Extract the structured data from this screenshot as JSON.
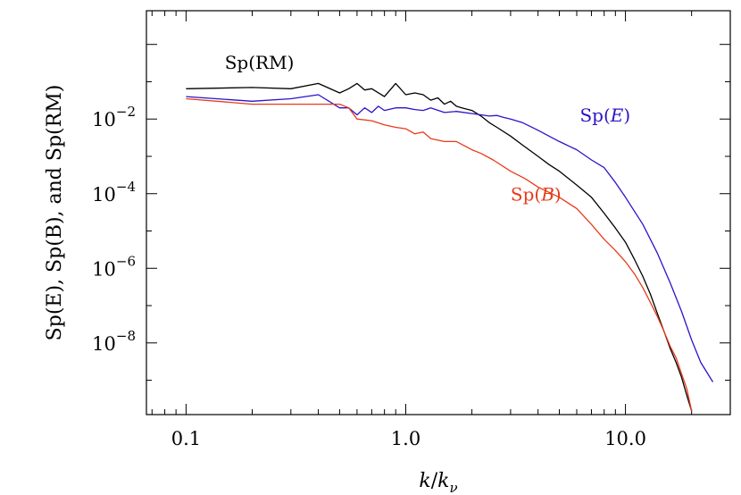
{
  "chart_data": {
    "type": "line",
    "xscale": "log",
    "yscale": "log",
    "xlim": [
      0.066,
      30
    ],
    "ylim": [
      1.2e-10,
      8e-08,
      0.0
    ],
    "ylim_data": [
      1.2e-10,
      8
    ],
    "xlabel": "k/k_ν",
    "xlabel_parts": {
      "k": "k",
      "slash": "/",
      "sub_base": "k",
      "sub": "ν"
    },
    "ylabel": "Sp(E), Sp(B), and Sp(RM)",
    "xticks": [
      {
        "value": 0.1,
        "label": "0.1"
      },
      {
        "value": 1.0,
        "label": "1.0"
      },
      {
        "value": 10.0,
        "label": "10.0"
      }
    ],
    "yticks": [
      {
        "value": 0.01,
        "base": "10",
        "exp": "−2"
      },
      {
        "value": 0.0001,
        "base": "10",
        "exp": "−4"
      },
      {
        "value": 1e-06,
        "base": "10",
        "exp": "−6"
      },
      {
        "value": 1e-08,
        "base": "10",
        "exp": "−8"
      }
    ],
    "grid": false,
    "series": [
      {
        "name": "Sp(RM)",
        "color": "#000000",
        "x": [
          0.1,
          0.2,
          0.3,
          0.4,
          0.5,
          0.55,
          0.6,
          0.65,
          0.7,
          0.8,
          0.9,
          1.0,
          1.1,
          1.2,
          1.3,
          1.4,
          1.5,
          1.6,
          1.7,
          1.8,
          2.0,
          2.2,
          2.4,
          2.6,
          3.0,
          3.4,
          4.0,
          4.5,
          5.0,
          6.0,
          7.0,
          8.0,
          9.0,
          10.0,
          11.0,
          12.0,
          13.0,
          14.0,
          15.0,
          16.0,
          17.0,
          18.0,
          19.0,
          20.0
        ],
        "values": [
          0.065,
          0.07,
          0.065,
          0.09,
          0.05,
          0.065,
          0.09,
          0.06,
          0.065,
          0.04,
          0.09,
          0.045,
          0.05,
          0.045,
          0.032,
          0.037,
          0.025,
          0.03,
          0.022,
          0.02,
          0.017,
          0.012,
          0.008,
          0.006,
          0.0035,
          0.002,
          0.001,
          0.0006,
          0.0004,
          0.00017,
          8e-05,
          3e-05,
          1.2e-05,
          5e-06,
          1.7e-06,
          6e-07,
          2e-07,
          6e-08,
          2e-08,
          7e-09,
          3e-09,
          1.2e-09,
          4e-10,
          1.5e-10
        ]
      },
      {
        "name": "Sp(E)",
        "color": "#2a14c8",
        "x": [
          0.1,
          0.2,
          0.3,
          0.4,
          0.5,
          0.55,
          0.6,
          0.65,
          0.7,
          0.75,
          0.8,
          0.9,
          1.0,
          1.1,
          1.2,
          1.3,
          1.5,
          1.7,
          2.0,
          2.2,
          2.4,
          2.6,
          2.8,
          3.0,
          3.4,
          4.0,
          5.0,
          6.0,
          7.0,
          8.0,
          9.0,
          10.0,
          12.0,
          14.0,
          16.0,
          18.0,
          20.0,
          22.0,
          25.0
        ],
        "values": [
          0.04,
          0.03,
          0.035,
          0.045,
          0.02,
          0.02,
          0.013,
          0.02,
          0.015,
          0.022,
          0.017,
          0.02,
          0.02,
          0.018,
          0.017,
          0.02,
          0.015,
          0.016,
          0.014,
          0.013,
          0.012,
          0.0125,
          0.011,
          0.01,
          0.008,
          0.005,
          0.0025,
          0.0015,
          0.0008,
          0.0005,
          0.0002,
          8e-05,
          1.5e-05,
          2.5e-06,
          4e-07,
          7e-08,
          1.2e-08,
          3e-09,
          9e-10
        ]
      },
      {
        "name": "Sp(B)",
        "color": "#e83a1a",
        "x": [
          0.1,
          0.2,
          0.3,
          0.4,
          0.5,
          0.55,
          0.6,
          0.7,
          0.8,
          0.9,
          1.0,
          1.1,
          1.2,
          1.3,
          1.5,
          1.7,
          2.0,
          2.2,
          2.5,
          3.0,
          3.5,
          4.0,
          5.0,
          6.0,
          7.0,
          8.0,
          9.0,
          10.0,
          11.0,
          12.0,
          13.0,
          14.0,
          15.0,
          16.0,
          17.0,
          18.0,
          19.0,
          20.0
        ],
        "values": [
          0.035,
          0.025,
          0.025,
          0.025,
          0.025,
          0.02,
          0.01,
          0.009,
          0.007,
          0.006,
          0.0055,
          0.004,
          0.0045,
          0.003,
          0.0025,
          0.0025,
          0.0015,
          0.0012,
          0.0008,
          0.0004,
          0.00025,
          0.00015,
          8e-05,
          4e-05,
          1.5e-05,
          6e-06,
          3e-06,
          1.5e-06,
          7e-07,
          3e-07,
          1.2e-07,
          5e-08,
          2e-08,
          8e-09,
          4e-09,
          1.5e-09,
          6e-10,
          1.5e-10
        ]
      }
    ],
    "annotations": [
      {
        "series": 0,
        "base": "Sp",
        "open": "(",
        "var": "RM",
        "close": ")",
        "italic_var": false,
        "at": {
          "x": 0.15,
          "y": 0.22
        }
      },
      {
        "series": 1,
        "base": "Sp",
        "open": "(",
        "var": "E",
        "close": ")",
        "italic_var": true,
        "at": {
          "x": 6.2,
          "y": 0.0085
        }
      },
      {
        "series": 2,
        "base": "Sp",
        "open": "(",
        "var": "B",
        "close": ")",
        "italic_var": true,
        "at": {
          "x": 3.0,
          "y": 6.5e-05
        }
      }
    ]
  }
}
